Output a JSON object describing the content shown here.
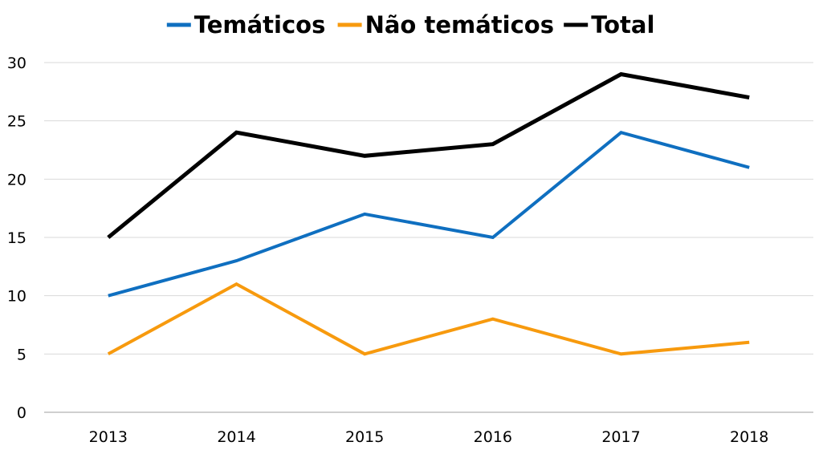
{
  "chart_data": {
    "type": "line",
    "title": "",
    "xlabel": "",
    "ylabel": "",
    "categories": [
      "2013",
      "2014",
      "2015",
      "2016",
      "2017",
      "2018"
    ],
    "ylim": [
      0,
      30
    ],
    "yticks": [
      "0",
      "5",
      "10",
      "15",
      "20",
      "25",
      "30"
    ],
    "grid": true,
    "legend_position": "top",
    "series": [
      {
        "name": "Temáticos",
        "color": "#0f6fc0",
        "values": [
          10,
          13,
          17,
          15,
          24,
          21
        ]
      },
      {
        "name": "Não temáticos",
        "color": "#f79a0e",
        "values": [
          5,
          11,
          5,
          8,
          5,
          6
        ]
      },
      {
        "name": "Total",
        "color": "#000000",
        "values": [
          15,
          24,
          22,
          23,
          29,
          27
        ]
      }
    ]
  }
}
